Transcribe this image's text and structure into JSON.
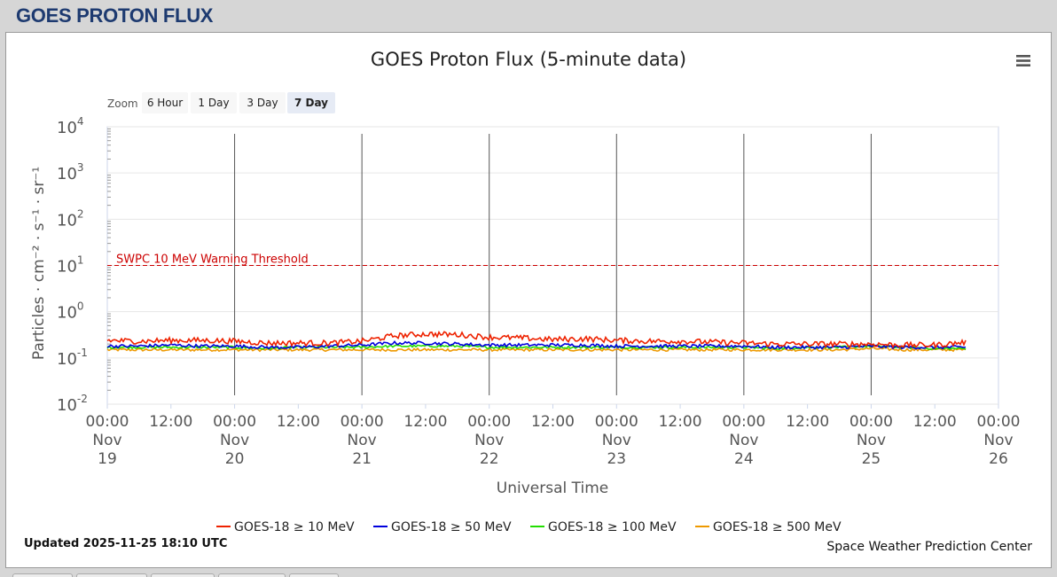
{
  "page": {
    "header_title": "GOES PROTON FLUX"
  },
  "chart_data": {
    "type": "line",
    "title": "GOES Proton Flux (5-minute data)",
    "xlabel": "Universal Time",
    "ylabel": "Particles · cm⁻² · s⁻¹ · sr⁻¹",
    "yscale": "log",
    "ylim": [
      0.01,
      10000
    ],
    "y_ticks": [
      {
        "base": "10",
        "exp": "4",
        "value": 10000
      },
      {
        "base": "10",
        "exp": "3",
        "value": 1000
      },
      {
        "base": "10",
        "exp": "2",
        "value": 100
      },
      {
        "base": "10",
        "exp": "1",
        "value": 10
      },
      {
        "base": "10",
        "exp": "0",
        "value": 1
      },
      {
        "base": "10",
        "exp": "-1",
        "value": 0.1
      },
      {
        "base": "10",
        "exp": "-2",
        "value": 0.01
      }
    ],
    "xlim": [
      "2025-11-19T00:00",
      "2025-11-26T00:00"
    ],
    "x_ticks": [
      {
        "time": "00:00",
        "month": "Nov",
        "day": "19",
        "at": "2025-11-19T00:00"
      },
      {
        "time": "12:00",
        "month": "",
        "day": "",
        "at": "2025-11-19T12:00"
      },
      {
        "time": "00:00",
        "month": "Nov",
        "day": "20",
        "at": "2025-11-20T00:00"
      },
      {
        "time": "12:00",
        "month": "",
        "day": "",
        "at": "2025-11-20T12:00"
      },
      {
        "time": "00:00",
        "month": "Nov",
        "day": "21",
        "at": "2025-11-21T00:00"
      },
      {
        "time": "12:00",
        "month": "",
        "day": "",
        "at": "2025-11-21T12:00"
      },
      {
        "time": "00:00",
        "month": "Nov",
        "day": "22",
        "at": "2025-11-22T00:00"
      },
      {
        "time": "12:00",
        "month": "",
        "day": "",
        "at": "2025-11-22T12:00"
      },
      {
        "time": "00:00",
        "month": "Nov",
        "day": "23",
        "at": "2025-11-23T00:00"
      },
      {
        "time": "12:00",
        "month": "",
        "day": "",
        "at": "2025-11-23T12:00"
      },
      {
        "time": "00:00",
        "month": "Nov",
        "day": "24",
        "at": "2025-11-24T00:00"
      },
      {
        "time": "12:00",
        "month": "",
        "day": "",
        "at": "2025-11-24T12:00"
      },
      {
        "time": "00:00",
        "month": "Nov",
        "day": "25",
        "at": "2025-11-25T00:00"
      },
      {
        "time": "12:00",
        "month": "",
        "day": "",
        "at": "2025-11-25T12:00"
      },
      {
        "time": "00:00",
        "month": "Nov",
        "day": "26",
        "at": "2025-11-26T00:00"
      }
    ],
    "day_lines": [
      "2025-11-20T00:00",
      "2025-11-21T00:00",
      "2025-11-22T00:00",
      "2025-11-23T00:00",
      "2025-11-24T00:00",
      "2025-11-25T00:00"
    ],
    "threshold": {
      "label": "SWPC 10 MeV Warning Threshold",
      "value": 10,
      "color": "#cc0000"
    },
    "grid": true,
    "legend_position": "bottom",
    "series": [
      {
        "name": "GOES-18 ≥ 10 MeV",
        "color": "#ee2200",
        "x": [
          "2025-11-19T00:00",
          "2025-11-19T06:00",
          "2025-11-19T12:00",
          "2025-11-19T18:00",
          "2025-11-20T00:00",
          "2025-11-20T06:00",
          "2025-11-20T12:00",
          "2025-11-20T18:00",
          "2025-11-21T00:00",
          "2025-11-21T06:00",
          "2025-11-21T12:00",
          "2025-11-21T18:00",
          "2025-11-22T00:00",
          "2025-11-22T06:00",
          "2025-11-22T12:00",
          "2025-11-22T18:00",
          "2025-11-23T00:00",
          "2025-11-23T06:00",
          "2025-11-23T12:00",
          "2025-11-23T18:00",
          "2025-11-24T00:00",
          "2025-11-24T06:00",
          "2025-11-24T12:00",
          "2025-11-24T18:00",
          "2025-11-25T00:00",
          "2025-11-25T06:00",
          "2025-11-25T12:00",
          "2025-11-25T18:00"
        ],
        "y": [
          0.24,
          0.23,
          0.24,
          0.24,
          0.23,
          0.21,
          0.21,
          0.21,
          0.23,
          0.3,
          0.33,
          0.32,
          0.28,
          0.27,
          0.25,
          0.26,
          0.24,
          0.23,
          0.23,
          0.22,
          0.21,
          0.2,
          0.2,
          0.2,
          0.2,
          0.19,
          0.19,
          0.22
        ]
      },
      {
        "name": "GOES-18 ≥ 50 MeV",
        "color": "#0000dd",
        "x": [
          "2025-11-19T00:00",
          "2025-11-19T06:00",
          "2025-11-19T12:00",
          "2025-11-19T18:00",
          "2025-11-20T00:00",
          "2025-11-20T06:00",
          "2025-11-20T12:00",
          "2025-11-20T18:00",
          "2025-11-21T00:00",
          "2025-11-21T06:00",
          "2025-11-21T12:00",
          "2025-11-21T18:00",
          "2025-11-22T00:00",
          "2025-11-22T06:00",
          "2025-11-22T12:00",
          "2025-11-22T18:00",
          "2025-11-23T00:00",
          "2025-11-23T06:00",
          "2025-11-23T12:00",
          "2025-11-23T18:00",
          "2025-11-24T00:00",
          "2025-11-24T06:00",
          "2025-11-24T12:00",
          "2025-11-24T18:00",
          "2025-11-25T00:00",
          "2025-11-25T06:00",
          "2025-11-25T12:00",
          "2025-11-25T18:00"
        ],
        "y": [
          0.18,
          0.18,
          0.19,
          0.18,
          0.18,
          0.17,
          0.17,
          0.18,
          0.19,
          0.21,
          0.21,
          0.2,
          0.19,
          0.19,
          0.19,
          0.19,
          0.18,
          0.18,
          0.18,
          0.18,
          0.18,
          0.17,
          0.17,
          0.17,
          0.18,
          0.17,
          0.17,
          0.17
        ]
      },
      {
        "name": "GOES-18 ≥ 100 MeV",
        "color": "#22dd00",
        "x": [
          "2025-11-19T00:00",
          "2025-11-19T06:00",
          "2025-11-19T12:00",
          "2025-11-19T18:00",
          "2025-11-20T00:00",
          "2025-11-20T06:00",
          "2025-11-20T12:00",
          "2025-11-20T18:00",
          "2025-11-21T00:00",
          "2025-11-21T06:00",
          "2025-11-21T12:00",
          "2025-11-21T18:00",
          "2025-11-22T00:00",
          "2025-11-22T06:00",
          "2025-11-22T12:00",
          "2025-11-22T18:00",
          "2025-11-23T00:00",
          "2025-11-23T06:00",
          "2025-11-23T12:00",
          "2025-11-23T18:00",
          "2025-11-24T00:00",
          "2025-11-24T06:00",
          "2025-11-24T12:00",
          "2025-11-24T18:00",
          "2025-11-25T00:00",
          "2025-11-25T06:00",
          "2025-11-25T12:00",
          "2025-11-25T18:00"
        ],
        "y": [
          0.17,
          0.17,
          0.17,
          0.17,
          0.17,
          0.16,
          0.17,
          0.17,
          0.17,
          0.18,
          0.18,
          0.18,
          0.17,
          0.17,
          0.17,
          0.17,
          0.17,
          0.17,
          0.17,
          0.17,
          0.17,
          0.16,
          0.17,
          0.17,
          0.18,
          0.17,
          0.16,
          0.16
        ]
      },
      {
        "name": "GOES-18 ≥ 500 MeV",
        "color": "#ee9900",
        "x": [
          "2025-11-19T00:00",
          "2025-11-19T06:00",
          "2025-11-19T12:00",
          "2025-11-19T18:00",
          "2025-11-20T00:00",
          "2025-11-20T06:00",
          "2025-11-20T12:00",
          "2025-11-20T18:00",
          "2025-11-21T00:00",
          "2025-11-21T06:00",
          "2025-11-21T12:00",
          "2025-11-21T18:00",
          "2025-11-22T00:00",
          "2025-11-22T06:00",
          "2025-11-22T12:00",
          "2025-11-22T18:00",
          "2025-11-23T00:00",
          "2025-11-23T06:00",
          "2025-11-23T12:00",
          "2025-11-23T18:00",
          "2025-11-24T00:00",
          "2025-11-24T06:00",
          "2025-11-24T12:00",
          "2025-11-24T18:00",
          "2025-11-25T00:00",
          "2025-11-25T06:00",
          "2025-11-25T12:00",
          "2025-11-25T18:00"
        ],
        "y": [
          0.15,
          0.15,
          0.15,
          0.15,
          0.15,
          0.15,
          0.15,
          0.15,
          0.15,
          0.15,
          0.15,
          0.15,
          0.15,
          0.15,
          0.15,
          0.15,
          0.15,
          0.15,
          0.15,
          0.15,
          0.15,
          0.15,
          0.15,
          0.15,
          0.16,
          0.15,
          0.15,
          0.15
        ]
      }
    ]
  },
  "zoom": {
    "label": "Zoom",
    "buttons": [
      {
        "label": "6 Hour",
        "selected": false
      },
      {
        "label": "1 Day",
        "selected": false
      },
      {
        "label": "3 Day",
        "selected": false
      },
      {
        "label": "7 Day",
        "selected": true
      }
    ]
  },
  "menu_icon": "hamburger-menu-icon",
  "footer": {
    "updated": "Updated 2025-11-25 18:10 UTC",
    "credit": "Space Weather Prediction Center"
  }
}
